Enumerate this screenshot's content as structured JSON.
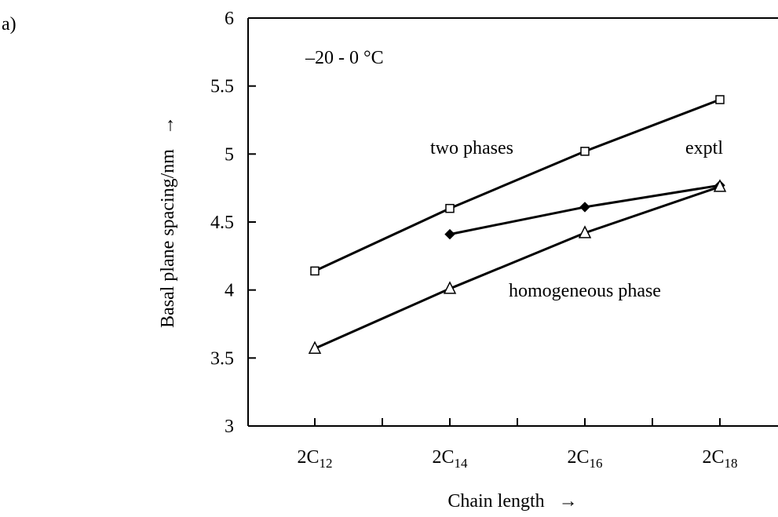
{
  "panel_label": "a)",
  "chart_data": {
    "type": "line",
    "categories": [
      "2C12",
      "2C14",
      "2C16",
      "2C18"
    ],
    "category_labels": [
      {
        "base": "2C",
        "sub": "12"
      },
      {
        "base": "2C",
        "sub": "14"
      },
      {
        "base": "2C",
        "sub": "16"
      },
      {
        "base": "2C",
        "sub": "18"
      }
    ],
    "xlabel": "Chain length",
    "xlabel_arrow": "→",
    "ylabel": "Basal plane spacing/nm",
    "ylabel_arrow": "→",
    "ylim": [
      3,
      6
    ],
    "yticks": [
      3,
      3.5,
      4,
      4.5,
      5,
      5.5,
      6
    ],
    "ytick_labels": [
      "3",
      "3.5",
      "4",
      "4.5",
      "5",
      "5.5",
      "6"
    ],
    "annotation_temp": "–20 - 0 °C",
    "grid": false,
    "legend": "none",
    "series": [
      {
        "name": "two phases",
        "marker": "open-square",
        "x": [
          "2C12",
          "2C14",
          "2C16",
          "2C18"
        ],
        "values": [
          4.14,
          4.6,
          5.02,
          5.4
        ]
      },
      {
        "name": "exptl",
        "marker": "filled-diamond",
        "x": [
          "2C14",
          "2C16",
          "2C18"
        ],
        "values": [
          4.41,
          4.61,
          4.77
        ]
      },
      {
        "name": "homogeneous phase",
        "marker": "open-triangle",
        "x": [
          "2C12",
          "2C14",
          "2C16",
          "2C18"
        ],
        "values": [
          3.57,
          4.01,
          4.42,
          4.76
        ]
      }
    ]
  }
}
